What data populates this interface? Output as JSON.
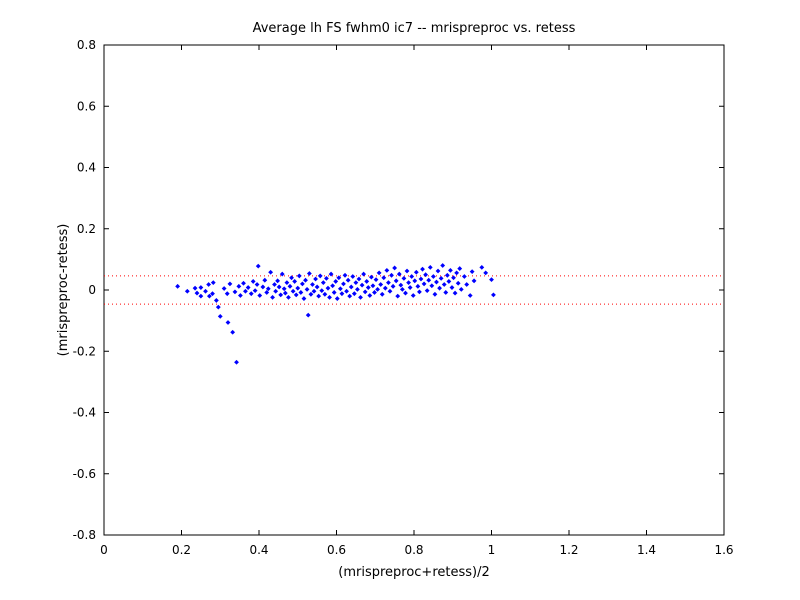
{
  "chart_data": {
    "type": "scatter",
    "title": "Average lh FS fwhm0 ic7 -- mrispreproc vs. retess",
    "xlabel": "(mrispreproc+retess)/2",
    "ylabel": "(mrispreproc-retess)",
    "xlim": [
      0,
      1.6
    ],
    "ylim": [
      -0.8,
      0.8
    ],
    "xticks": [
      "0",
      "0.2",
      "0.4",
      "0.6",
      "0.8",
      "1",
      "1.2",
      "1.4",
      "1.6"
    ],
    "yticks": [
      "0.8",
      "0.6",
      "0.4",
      "0.2",
      "0",
      "-0.2",
      "-0.4",
      "-0.6",
      "-0.8"
    ],
    "grid": false,
    "marker_color": "#0000ff",
    "reference_line_color": "#ff0000",
    "reference_lines_y": [
      0.046,
      -0.046
    ],
    "series": [
      {
        "color": "#0000ff",
        "points": [
          [
            0.19,
            0.012
          ],
          [
            0.215,
            -0.004
          ],
          [
            0.235,
            0.006
          ],
          [
            0.24,
            -0.01
          ],
          [
            0.25,
            -0.02
          ],
          [
            0.25,
            0.008
          ],
          [
            0.262,
            -0.004
          ],
          [
            0.27,
            0.018
          ],
          [
            0.272,
            -0.02
          ],
          [
            0.28,
            -0.012
          ],
          [
            0.282,
            0.024
          ],
          [
            0.29,
            -0.034
          ],
          [
            0.295,
            -0.056
          ],
          [
            0.3,
            -0.086
          ],
          [
            0.31,
            0.005
          ],
          [
            0.318,
            -0.012
          ],
          [
            0.32,
            -0.106
          ],
          [
            0.325,
            0.02
          ],
          [
            0.332,
            -0.138
          ],
          [
            0.338,
            -0.006
          ],
          [
            0.342,
            -0.236
          ],
          [
            0.348,
            0.012
          ],
          [
            0.352,
            -0.018
          ],
          [
            0.36,
            0.022
          ],
          [
            0.365,
            -0.004
          ],
          [
            0.372,
            0.008
          ],
          [
            0.38,
            -0.012
          ],
          [
            0.385,
            0.028
          ],
          [
            0.39,
            -0.002
          ],
          [
            0.395,
            0.018
          ],
          [
            0.398,
            0.078
          ],
          [
            0.402,
            -0.018
          ],
          [
            0.41,
            0.01
          ],
          [
            0.415,
            0.032
          ],
          [
            0.42,
            -0.008
          ],
          [
            0.424,
            0.004
          ],
          [
            0.43,
            0.058
          ],
          [
            0.435,
            -0.024
          ],
          [
            0.44,
            0.018
          ],
          [
            0.443,
            -0.004
          ],
          [
            0.448,
            0.03
          ],
          [
            0.452,
            0.01
          ],
          [
            0.456,
            -0.016
          ],
          [
            0.46,
            0.052
          ],
          [
            0.465,
            0.004
          ],
          [
            0.468,
            -0.01
          ],
          [
            0.472,
            0.024
          ],
          [
            0.476,
            -0.024
          ],
          [
            0.48,
            0.012
          ],
          [
            0.484,
            0.04
          ],
          [
            0.488,
            -0.004
          ],
          [
            0.492,
            0.028
          ],
          [
            0.496,
            -0.016
          ],
          [
            0.5,
            0.006
          ],
          [
            0.504,
            0.046
          ],
          [
            0.508,
            -0.008
          ],
          [
            0.512,
            0.02
          ],
          [
            0.516,
            -0.028
          ],
          [
            0.52,
            0.032
          ],
          [
            0.524,
            0.002
          ],
          [
            0.527,
            -0.082
          ],
          [
            0.53,
            0.054
          ],
          [
            0.534,
            -0.014
          ],
          [
            0.538,
            0.018
          ],
          [
            0.542,
            -0.004
          ],
          [
            0.546,
            0.036
          ],
          [
            0.55,
            0.01
          ],
          [
            0.554,
            -0.02
          ],
          [
            0.558,
            0.046
          ],
          [
            0.562,
            -0.002
          ],
          [
            0.566,
            0.024
          ],
          [
            0.57,
            -0.014
          ],
          [
            0.574,
            0.038
          ],
          [
            0.578,
            0.006
          ],
          [
            0.582,
            -0.024
          ],
          [
            0.586,
            0.052
          ],
          [
            0.59,
            0.014
          ],
          [
            0.594,
            -0.008
          ],
          [
            0.598,
            0.028
          ],
          [
            0.602,
            -0.028
          ],
          [
            0.606,
            0.04
          ],
          [
            0.61,
            0.004
          ],
          [
            0.614,
            -0.012
          ],
          [
            0.618,
            0.02
          ],
          [
            0.622,
            0.048
          ],
          [
            0.626,
            -0.004
          ],
          [
            0.63,
            0.032
          ],
          [
            0.634,
            -0.02
          ],
          [
            0.638,
            0.01
          ],
          [
            0.642,
            0.044
          ],
          [
            0.646,
            -0.012
          ],
          [
            0.65,
            0.024
          ],
          [
            0.654,
            0.002
          ],
          [
            0.658,
            0.036
          ],
          [
            0.662,
            -0.024
          ],
          [
            0.666,
            0.016
          ],
          [
            0.67,
            0.052
          ],
          [
            0.674,
            -0.006
          ],
          [
            0.678,
            0.028
          ],
          [
            0.682,
            0.008
          ],
          [
            0.686,
            -0.018
          ],
          [
            0.69,
            0.042
          ],
          [
            0.694,
            0.014
          ],
          [
            0.698,
            -0.008
          ],
          [
            0.702,
            0.034
          ],
          [
            0.706,
            0.002
          ],
          [
            0.71,
            0.056
          ],
          [
            0.714,
            0.018
          ],
          [
            0.718,
            -0.014
          ],
          [
            0.722,
            0.04
          ],
          [
            0.726,
            0.006
          ],
          [
            0.73,
            0.064
          ],
          [
            0.734,
            0.024
          ],
          [
            0.738,
            -0.004
          ],
          [
            0.742,
            0.048
          ],
          [
            0.746,
            0.012
          ],
          [
            0.75,
            0.072
          ],
          [
            0.754,
            0.03
          ],
          [
            0.758,
            -0.02
          ],
          [
            0.762,
            0.052
          ],
          [
            0.766,
            0.016
          ],
          [
            0.77,
            0.002
          ],
          [
            0.774,
            0.038
          ],
          [
            0.778,
            -0.01
          ],
          [
            0.782,
            0.062
          ],
          [
            0.786,
            0.024
          ],
          [
            0.79,
            0.008
          ],
          [
            0.794,
            0.044
          ],
          [
            0.798,
            -0.018
          ],
          [
            0.802,
            0.03
          ],
          [
            0.806,
            0.058
          ],
          [
            0.81,
            0.012
          ],
          [
            0.814,
            -0.006
          ],
          [
            0.818,
            0.036
          ],
          [
            0.822,
            0.068
          ],
          [
            0.826,
            0.02
          ],
          [
            0.83,
            0.05
          ],
          [
            0.834,
            -0.002
          ],
          [
            0.838,
            0.032
          ],
          [
            0.842,
            0.074
          ],
          [
            0.846,
            0.014
          ],
          [
            0.85,
            0.044
          ],
          [
            0.854,
            -0.014
          ],
          [
            0.858,
            0.026
          ],
          [
            0.862,
            0.062
          ],
          [
            0.866,
            0.006
          ],
          [
            0.87,
            0.038
          ],
          [
            0.874,
            0.08
          ],
          [
            0.878,
            0.018
          ],
          [
            0.882,
            -0.008
          ],
          [
            0.886,
            0.048
          ],
          [
            0.89,
            0.028
          ],
          [
            0.894,
            0.064
          ],
          [
            0.898,
            0.008
          ],
          [
            0.902,
            0.04
          ],
          [
            0.906,
            -0.01
          ],
          [
            0.91,
            0.056
          ],
          [
            0.914,
            0.022
          ],
          [
            0.918,
            0.07
          ],
          [
            0.922,
            0.002
          ],
          [
            0.93,
            0.044
          ],
          [
            0.936,
            0.018
          ],
          [
            0.945,
            -0.018
          ],
          [
            0.95,
            0.06
          ],
          [
            0.955,
            0.03
          ],
          [
            0.975,
            0.074
          ],
          [
            0.985,
            0.056
          ],
          [
            1.0,
            0.034
          ],
          [
            1.005,
            -0.016
          ]
        ]
      }
    ]
  }
}
